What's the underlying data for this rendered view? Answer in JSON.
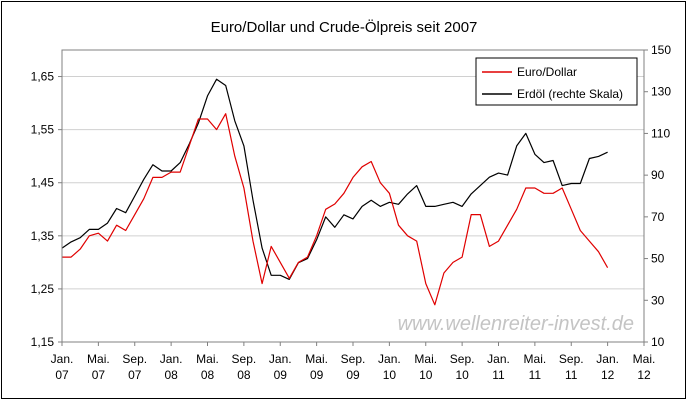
{
  "chart_data": {
    "type": "line",
    "title": "Euro/Dollar und Crude-Ölpreis seit 2007",
    "watermark": "www.wellenreiter-invest.de",
    "x_axis": {
      "ticks": [
        {
          "month": "Jan.",
          "year": "07"
        },
        {
          "month": "Mai.",
          "year": "07"
        },
        {
          "month": "Sep.",
          "year": "07"
        },
        {
          "month": "Jan.",
          "year": "08"
        },
        {
          "month": "Mai.",
          "year": "08"
        },
        {
          "month": "Sep.",
          "year": "08"
        },
        {
          "month": "Jan.",
          "year": "09"
        },
        {
          "month": "Mai.",
          "year": "09"
        },
        {
          "month": "Sep.",
          "year": "09"
        },
        {
          "month": "Jan.",
          "year": "10"
        },
        {
          "month": "Mai.",
          "year": "10"
        },
        {
          "month": "Sep.",
          "year": "10"
        },
        {
          "month": "Jan.",
          "year": "11"
        },
        {
          "month": "Mai.",
          "year": "11"
        },
        {
          "month": "Sep.",
          "year": "11"
        },
        {
          "month": "Jan.",
          "year": "12"
        },
        {
          "month": "Mai.",
          "year": "12"
        }
      ],
      "range": [
        "Jan. 07",
        "Mai. 12"
      ]
    },
    "y_left": {
      "ticks": [
        "1,15",
        "1,25",
        "1,35",
        "1,45",
        "1,55",
        "1,65"
      ],
      "range": [
        1.15,
        1.7
      ]
    },
    "y_right": {
      "ticks": [
        "10",
        "30",
        "50",
        "70",
        "90",
        "110",
        "130",
        "150"
      ],
      "range": [
        10,
        150
      ]
    },
    "grid": "horizontal",
    "legend_position": "top-right",
    "series": [
      {
        "name": "Euro/Dollar",
        "axis": "left",
        "color": "#e00000",
        "points": [
          [
            "Jan. 07",
            1.31
          ],
          [
            "Feb. 07",
            1.31
          ],
          [
            "Mrz. 07",
            1.325
          ],
          [
            "Apr. 07",
            1.35
          ],
          [
            "Mai. 07",
            1.355
          ],
          [
            "Jun. 07",
            1.34
          ],
          [
            "Jul. 07",
            1.37
          ],
          [
            "Aug. 07",
            1.36
          ],
          [
            "Sep. 07",
            1.39
          ],
          [
            "Okt. 07",
            1.42
          ],
          [
            "Nov. 07",
            1.46
          ],
          [
            "Dez. 07",
            1.46
          ],
          [
            "Jan. 08",
            1.47
          ],
          [
            "Feb. 08",
            1.47
          ],
          [
            "Mrz. 08",
            1.52
          ],
          [
            "Apr. 08",
            1.57
          ],
          [
            "Mai. 08",
            1.57
          ],
          [
            "Jun. 08",
            1.55
          ],
          [
            "Jul. 08",
            1.58
          ],
          [
            "Aug. 08",
            1.5
          ],
          [
            "Sep. 08",
            1.44
          ],
          [
            "Okt. 08",
            1.34
          ],
          [
            "Nov. 08",
            1.26
          ],
          [
            "Dez. 08",
            1.33
          ],
          [
            "Jan. 09",
            1.3
          ],
          [
            "Feb. 09",
            1.27
          ],
          [
            "Mrz. 09",
            1.3
          ],
          [
            "Apr. 09",
            1.31
          ],
          [
            "Mai. 09",
            1.35
          ],
          [
            "Jun. 09",
            1.4
          ],
          [
            "Jul. 09",
            1.41
          ],
          [
            "Aug. 09",
            1.43
          ],
          [
            "Sep. 09",
            1.46
          ],
          [
            "Okt. 09",
            1.48
          ],
          [
            "Nov. 09",
            1.49
          ],
          [
            "Dez. 09",
            1.45
          ],
          [
            "Jan. 10",
            1.43
          ],
          [
            "Feb. 10",
            1.37
          ],
          [
            "Mrz. 10",
            1.35
          ],
          [
            "Apr. 10",
            1.34
          ],
          [
            "Mai. 10",
            1.26
          ],
          [
            "Jun. 10",
            1.22
          ],
          [
            "Jul. 10",
            1.28
          ],
          [
            "Aug. 10",
            1.3
          ],
          [
            "Sep. 10",
            1.31
          ],
          [
            "Okt. 10",
            1.39
          ],
          [
            "Nov. 10",
            1.39
          ],
          [
            "Dez. 10",
            1.33
          ],
          [
            "Jan. 11",
            1.34
          ],
          [
            "Feb. 11",
            1.37
          ],
          [
            "Mrz. 11",
            1.4
          ],
          [
            "Apr. 11",
            1.44
          ],
          [
            "Mai. 11",
            1.44
          ],
          [
            "Jun. 11",
            1.43
          ],
          [
            "Jul. 11",
            1.43
          ],
          [
            "Aug. 11",
            1.44
          ],
          [
            "Sep. 11",
            1.4
          ],
          [
            "Okt. 11",
            1.36
          ],
          [
            "Nov. 11",
            1.34
          ],
          [
            "Dez. 11",
            1.32
          ],
          [
            "Jan. 12",
            1.29
          ]
        ]
      },
      {
        "name": "Erdöl (rechte Skala)",
        "axis": "right",
        "color": "#000000",
        "points": [
          [
            "Jan. 07",
            55
          ],
          [
            "Feb. 07",
            58
          ],
          [
            "Mrz. 07",
            60
          ],
          [
            "Apr. 07",
            64
          ],
          [
            "Mai. 07",
            64
          ],
          [
            "Jun. 07",
            67
          ],
          [
            "Jul. 07",
            74
          ],
          [
            "Aug. 07",
            72
          ],
          [
            "Sep. 07",
            80
          ],
          [
            "Okt. 07",
            88
          ],
          [
            "Nov. 07",
            95
          ],
          [
            "Dez. 07",
            92
          ],
          [
            "Jan. 08",
            92
          ],
          [
            "Feb. 08",
            96
          ],
          [
            "Mrz. 08",
            105
          ],
          [
            "Apr. 08",
            115
          ],
          [
            "Mai. 08",
            128
          ],
          [
            "Jun. 08",
            136
          ],
          [
            "Jul. 08",
            133
          ],
          [
            "Aug. 08",
            116
          ],
          [
            "Sep. 08",
            104
          ],
          [
            "Okt. 08",
            78
          ],
          [
            "Nov. 08",
            55
          ],
          [
            "Dez. 08",
            42
          ],
          [
            "Jan. 09",
            42
          ],
          [
            "Feb. 09",
            40
          ],
          [
            "Mrz. 09",
            48
          ],
          [
            "Apr. 09",
            50
          ],
          [
            "Mai. 09",
            59
          ],
          [
            "Jun. 09",
            70
          ],
          [
            "Jul. 09",
            65
          ],
          [
            "Aug. 09",
            71
          ],
          [
            "Sep. 09",
            69
          ],
          [
            "Okt. 09",
            75
          ],
          [
            "Nov. 09",
            78
          ],
          [
            "Dez. 09",
            75
          ],
          [
            "Jan. 10",
            77
          ],
          [
            "Feb. 10",
            76
          ],
          [
            "Mrz. 10",
            81
          ],
          [
            "Apr. 10",
            85
          ],
          [
            "Mai. 10",
            75
          ],
          [
            "Jun. 10",
            75
          ],
          [
            "Jul. 10",
            76
          ],
          [
            "Aug. 10",
            77
          ],
          [
            "Sep. 10",
            75
          ],
          [
            "Okt. 10",
            81
          ],
          [
            "Nov. 10",
            85
          ],
          [
            "Dez. 10",
            89
          ],
          [
            "Jan. 11",
            91
          ],
          [
            "Feb. 11",
            90
          ],
          [
            "Mrz. 11",
            104
          ],
          [
            "Apr. 11",
            110
          ],
          [
            "Mai. 11",
            100
          ],
          [
            "Jun. 11",
            96
          ],
          [
            "Jul. 11",
            97
          ],
          [
            "Aug. 11",
            85
          ],
          [
            "Sep. 11",
            86
          ],
          [
            "Okt. 11",
            86
          ],
          [
            "Nov. 11",
            98
          ],
          [
            "Dez. 11",
            99
          ],
          [
            "Jan. 12",
            101
          ]
        ]
      }
    ]
  }
}
